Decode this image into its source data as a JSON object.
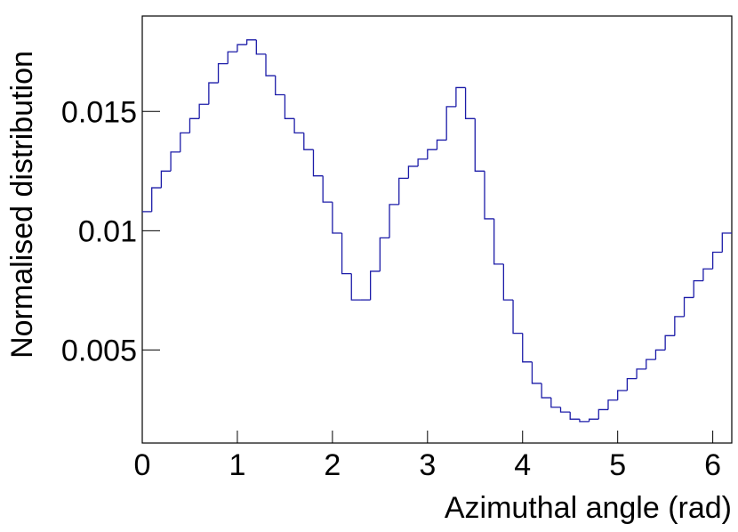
{
  "chart_data": {
    "type": "histogram",
    "xlabel": "Azimuthal angle (rad)",
    "ylabel": "Normalised distribution",
    "color": "#1c1ca8",
    "bins": [
      0,
      0.1,
      0.2,
      0.3,
      0.4,
      0.5,
      0.6,
      0.7,
      0.8,
      0.9,
      1.0,
      1.1,
      1.2,
      1.3,
      1.4,
      1.5,
      1.6,
      1.7,
      1.8,
      1.9,
      2.0,
      2.1,
      2.2,
      2.3,
      2.4,
      2.5,
      2.6,
      2.7,
      2.8,
      2.9,
      3.0,
      3.1,
      3.2,
      3.3,
      3.4,
      3.5,
      3.6,
      3.7,
      3.8,
      3.9,
      4.0,
      4.1,
      4.2,
      4.3,
      4.4,
      4.5,
      4.6,
      4.7,
      4.8,
      4.9,
      5.0,
      5.1,
      5.2,
      5.3,
      5.4,
      5.5,
      5.6,
      5.7,
      5.8,
      5.9,
      6.0,
      6.1,
      6.2
    ],
    "values": [
      0.0108,
      0.0118,
      0.0125,
      0.0133,
      0.0141,
      0.0147,
      0.0153,
      0.0162,
      0.017,
      0.0175,
      0.0178,
      0.018,
      0.0174,
      0.0165,
      0.0157,
      0.0147,
      0.0141,
      0.0134,
      0.0123,
      0.0112,
      0.0099,
      0.0082,
      0.0071,
      0.0071,
      0.0083,
      0.0097,
      0.0111,
      0.0122,
      0.0127,
      0.013,
      0.0134,
      0.0138,
      0.0152,
      0.016,
      0.0147,
      0.0125,
      0.0105,
      0.0086,
      0.0071,
      0.0057,
      0.0045,
      0.0036,
      0.003,
      0.0026,
      0.0024,
      0.0021,
      0.002,
      0.0021,
      0.0025,
      0.0029,
      0.0033,
      0.0038,
      0.0042,
      0.0046,
      0.005,
      0.0056,
      0.0064,
      0.0072,
      0.0079,
      0.0084,
      0.0091,
      0.0099
    ],
    "xlim": [
      0,
      6.2
    ],
    "ylim": [
      0.0011,
      0.019
    ],
    "xticks": [
      0,
      1,
      2,
      3,
      4,
      5,
      6
    ],
    "yticks": [
      0.005,
      0.01,
      0.015
    ]
  }
}
